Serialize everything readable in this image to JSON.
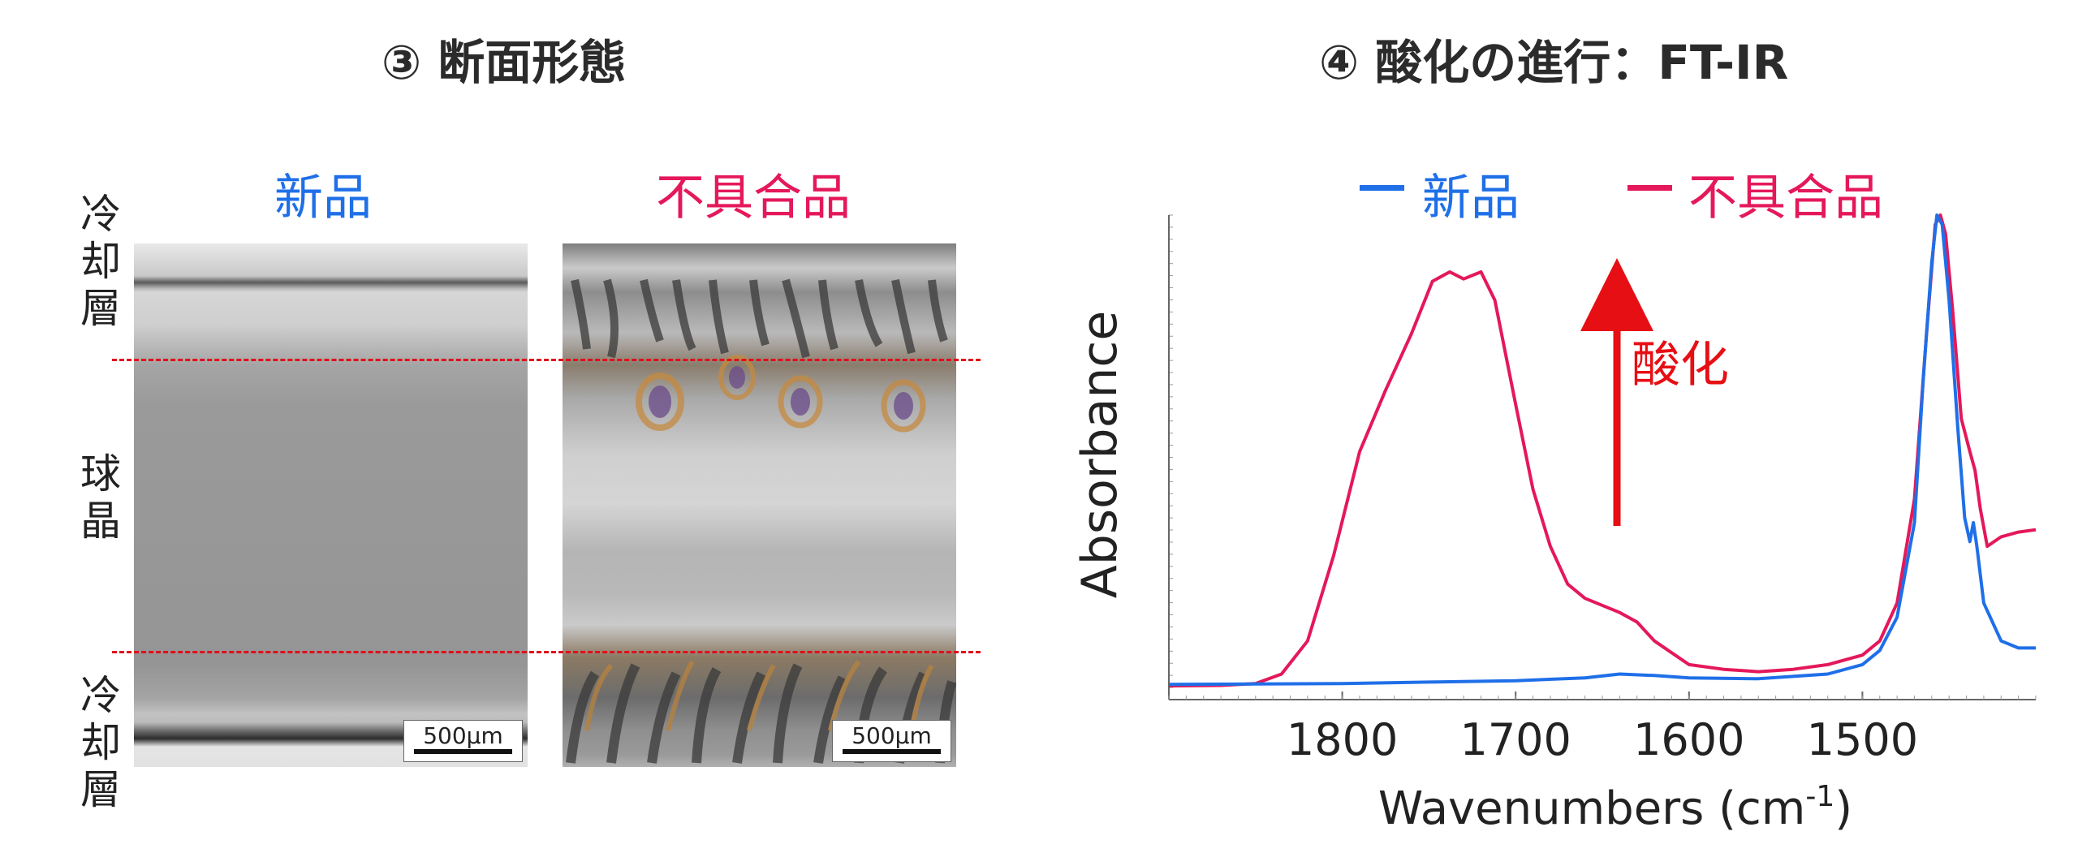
{
  "left_panel": {
    "title": "③ 断面形態",
    "new_label": "新品",
    "bad_label": "不具合品",
    "layer_top": "冷却層",
    "layer_middle": "球晶",
    "layer_bottom": "冷却層",
    "scalebar_new": "500μm",
    "scalebar_bad": "500μm",
    "colors": {
      "new": "#1f6fe8",
      "bad": "#e4185a",
      "dash": "#e0101a"
    }
  },
  "right_panel": {
    "title": "④ 酸化の進行：FT-IR",
    "legend_new": "新品",
    "legend_bad": "不具合品",
    "annotation": "酸化",
    "annotation_color": "#e60f14"
  },
  "chart_data": {
    "type": "line",
    "title": "④ 酸化の進行：FT-IR",
    "xlabel": "Wavenumbers (cm-1)",
    "ylabel": "Absorbance",
    "x_reversed": true,
    "xlim": [
      1900,
      1400
    ],
    "ylim": [
      0,
      1
    ],
    "xticks": [
      1800,
      1700,
      1600,
      1500
    ],
    "y_ticks_labeled": false,
    "legend_position": "top",
    "series": [
      {
        "name": "新品",
        "color": "#1f6fe8",
        "points": [
          [
            1900,
            0.008
          ],
          [
            1850,
            0.009
          ],
          [
            1800,
            0.01
          ],
          [
            1750,
            0.013
          ],
          [
            1700,
            0.016
          ],
          [
            1660,
            0.022
          ],
          [
            1640,
            0.03
          ],
          [
            1620,
            0.027
          ],
          [
            1600,
            0.022
          ],
          [
            1560,
            0.02
          ],
          [
            1520,
            0.03
          ],
          [
            1500,
            0.05
          ],
          [
            1490,
            0.08
          ],
          [
            1480,
            0.15
          ],
          [
            1470,
            0.35
          ],
          [
            1465,
            0.65
          ],
          [
            1460,
            0.9
          ],
          [
            1457,
            1.0
          ],
          [
            1454,
            0.98
          ],
          [
            1450,
            0.82
          ],
          [
            1445,
            0.55
          ],
          [
            1441,
            0.36
          ],
          [
            1438,
            0.31
          ],
          [
            1436,
            0.35
          ],
          [
            1434,
            0.3
          ],
          [
            1430,
            0.18
          ],
          [
            1420,
            0.1
          ],
          [
            1410,
            0.085
          ],
          [
            1400,
            0.085
          ]
        ]
      },
      {
        "name": "不具合品",
        "color": "#e4185a",
        "points": [
          [
            1900,
            0.005
          ],
          [
            1870,
            0.006
          ],
          [
            1850,
            0.01
          ],
          [
            1835,
            0.03
          ],
          [
            1820,
            0.1
          ],
          [
            1805,
            0.28
          ],
          [
            1790,
            0.5
          ],
          [
            1775,
            0.63
          ],
          [
            1760,
            0.75
          ],
          [
            1748,
            0.86
          ],
          [
            1738,
            0.88
          ],
          [
            1730,
            0.865
          ],
          [
            1720,
            0.88
          ],
          [
            1712,
            0.82
          ],
          [
            1700,
            0.6
          ],
          [
            1690,
            0.42
          ],
          [
            1680,
            0.3
          ],
          [
            1670,
            0.22
          ],
          [
            1660,
            0.19
          ],
          [
            1640,
            0.16
          ],
          [
            1630,
            0.14
          ],
          [
            1620,
            0.1
          ],
          [
            1600,
            0.05
          ],
          [
            1580,
            0.04
          ],
          [
            1560,
            0.035
          ],
          [
            1540,
            0.04
          ],
          [
            1520,
            0.05
          ],
          [
            1500,
            0.07
          ],
          [
            1490,
            0.1
          ],
          [
            1480,
            0.18
          ],
          [
            1470,
            0.4
          ],
          [
            1463,
            0.75
          ],
          [
            1458,
            0.98
          ],
          [
            1455,
            1.0
          ],
          [
            1452,
            0.96
          ],
          [
            1448,
            0.8
          ],
          [
            1443,
            0.57
          ],
          [
            1438,
            0.5
          ],
          [
            1435,
            0.46
          ],
          [
            1432,
            0.38
          ],
          [
            1428,
            0.3
          ],
          [
            1420,
            0.32
          ],
          [
            1410,
            0.33
          ],
          [
            1400,
            0.335
          ]
        ]
      }
    ]
  }
}
